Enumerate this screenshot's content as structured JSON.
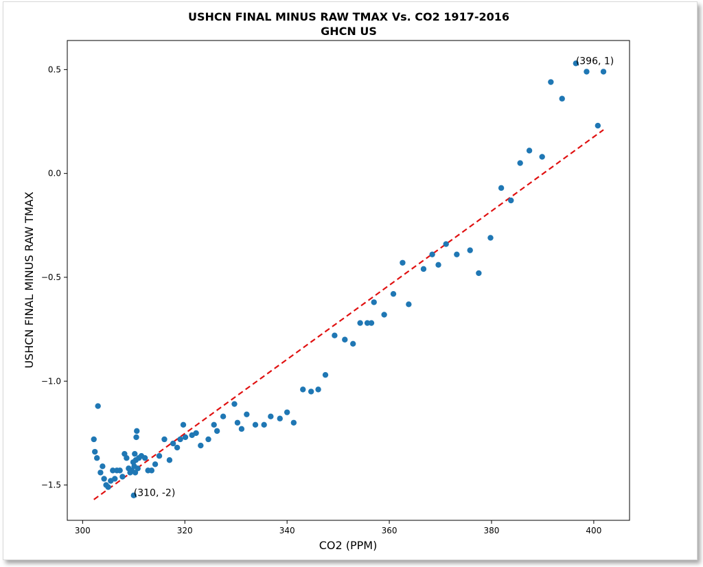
{
  "chart_data": {
    "type": "scatter",
    "title": "USHCN FINAL MINUS RAW TMAX Vs. CO2 1917-2016",
    "subtitle": "GHCN US",
    "xlabel": "CO2 (PPM)",
    "ylabel": "USHCN FINAL MINUS RAW TMAX",
    "xlim": [
      297,
      407
    ],
    "ylim": [
      -1.67,
      0.64
    ],
    "xticks": [
      300,
      320,
      340,
      360,
      380,
      400
    ],
    "yticks": [
      -1.5,
      -1.0,
      -0.5,
      0.0,
      0.5
    ],
    "xtick_labels": [
      "300",
      "320",
      "340",
      "360",
      "380",
      "400"
    ],
    "ytick_labels": [
      "−1.5",
      "−1.0",
      "−0.5",
      "0.0",
      "0.5"
    ],
    "point_color": "#1f77b4",
    "trend_color": "#e01010",
    "points": [
      [
        302.2,
        -1.28
      ],
      [
        302.4,
        -1.34
      ],
      [
        302.8,
        -1.37
      ],
      [
        303.0,
        -1.12
      ],
      [
        303.5,
        -1.44
      ],
      [
        303.9,
        -1.41
      ],
      [
        304.2,
        -1.47
      ],
      [
        304.6,
        -1.5
      ],
      [
        305.0,
        -1.51
      ],
      [
        305.5,
        -1.48
      ],
      [
        305.9,
        -1.43
      ],
      [
        306.3,
        -1.47
      ],
      [
        306.7,
        -1.43
      ],
      [
        307.3,
        -1.43
      ],
      [
        307.8,
        -1.46
      ],
      [
        308.2,
        -1.35
      ],
      [
        308.6,
        -1.37
      ],
      [
        309.0,
        -1.42
      ],
      [
        309.3,
        -1.44
      ],
      [
        309.6,
        -1.43
      ],
      [
        309.9,
        -1.39
      ],
      [
        310.0,
        -1.55
      ],
      [
        310.1,
        -1.41
      ],
      [
        310.2,
        -1.35
      ],
      [
        310.3,
        -1.44
      ],
      [
        310.4,
        -1.38
      ],
      [
        310.5,
        -1.27
      ],
      [
        310.6,
        -1.24
      ],
      [
        310.8,
        -1.42
      ],
      [
        311.0,
        -1.37
      ],
      [
        311.5,
        -1.36
      ],
      [
        312.2,
        -1.37
      ],
      [
        312.8,
        -1.43
      ],
      [
        313.5,
        -1.43
      ],
      [
        314.2,
        -1.4
      ],
      [
        315.0,
        -1.36
      ],
      [
        316.0,
        -1.28
      ],
      [
        317.0,
        -1.38
      ],
      [
        317.7,
        -1.3
      ],
      [
        318.5,
        -1.32
      ],
      [
        319.1,
        -1.28
      ],
      [
        319.7,
        -1.21
      ],
      [
        320.1,
        -1.27
      ],
      [
        321.4,
        -1.26
      ],
      [
        322.2,
        -1.25
      ],
      [
        323.1,
        -1.31
      ],
      [
        324.6,
        -1.28
      ],
      [
        325.7,
        -1.21
      ],
      [
        326.3,
        -1.24
      ],
      [
        327.5,
        -1.17
      ],
      [
        329.7,
        -1.11
      ],
      [
        330.3,
        -1.2
      ],
      [
        331.1,
        -1.23
      ],
      [
        332.1,
        -1.16
      ],
      [
        333.8,
        -1.21
      ],
      [
        335.5,
        -1.21
      ],
      [
        336.8,
        -1.17
      ],
      [
        338.6,
        -1.18
      ],
      [
        340.0,
        -1.15
      ],
      [
        341.3,
        -1.2
      ],
      [
        343.1,
        -1.04
      ],
      [
        344.7,
        -1.05
      ],
      [
        346.1,
        -1.04
      ],
      [
        347.5,
        -0.97
      ],
      [
        349.3,
        -0.78
      ],
      [
        351.3,
        -0.8
      ],
      [
        352.9,
        -0.82
      ],
      [
        354.3,
        -0.72
      ],
      [
        355.7,
        -0.72
      ],
      [
        356.5,
        -0.72
      ],
      [
        357.0,
        -0.62
      ],
      [
        359.0,
        -0.68
      ],
      [
        360.8,
        -0.58
      ],
      [
        362.6,
        -0.43
      ],
      [
        363.8,
        -0.63
      ],
      [
        366.7,
        -0.46
      ],
      [
        368.4,
        -0.39
      ],
      [
        369.6,
        -0.44
      ],
      [
        371.1,
        -0.34
      ],
      [
        373.2,
        -0.39
      ],
      [
        375.8,
        -0.37
      ],
      [
        377.5,
        -0.48
      ],
      [
        379.8,
        -0.31
      ],
      [
        381.9,
        -0.07
      ],
      [
        383.8,
        -0.13
      ],
      [
        385.6,
        0.05
      ],
      [
        387.4,
        0.11
      ],
      [
        389.9,
        0.08
      ],
      [
        391.6,
        0.44
      ],
      [
        393.8,
        0.36
      ],
      [
        396.5,
        0.53
      ],
      [
        398.6,
        0.49
      ],
      [
        400.8,
        0.23
      ],
      [
        401.9,
        0.49
      ]
    ],
    "trendline": {
      "x": [
        302.2,
        401.9
      ],
      "y": [
        -1.57,
        0.21
      ]
    },
    "annotations": [
      {
        "text": "(396, 1)",
        "x": 396.5,
        "y": 0.53
      },
      {
        "text": "(310, -2)",
        "x": 310.0,
        "y": -1.55
      }
    ]
  }
}
